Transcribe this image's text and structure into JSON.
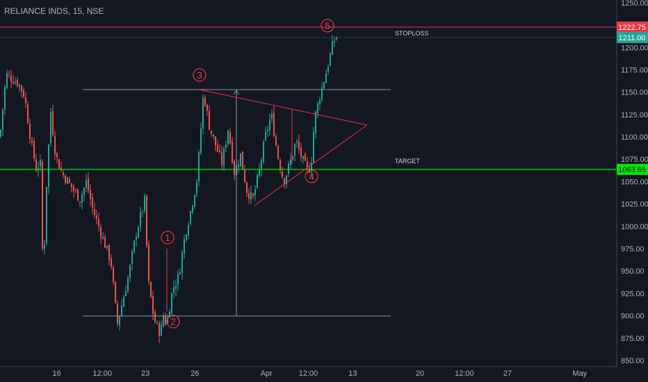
{
  "title": "RELIANCE INDS, 15, NSE",
  "chart_data": {
    "type": "candlestick",
    "symbol": "RELIANCE INDS",
    "interval": "15",
    "exchange": "NSE",
    "y_ticks": [
      "1250.00",
      "1225.00",
      "1200.00",
      "1175.00",
      "1150.00",
      "1125.00",
      "1100.00",
      "1075.00",
      "1050.00",
      "1025.00",
      "1000.00",
      "975.00",
      "950.00",
      "925.00",
      "900.00",
      "875.00",
      "850.00"
    ],
    "y_tick_values": [
      1250,
      1225,
      1200,
      1175,
      1150,
      1125,
      1100,
      1075,
      1050,
      1025,
      1000,
      975,
      950,
      925,
      900,
      875,
      850
    ],
    "ylim": [
      843,
      1253
    ],
    "x_ticks": [
      {
        "label": "16",
        "pos": 0.092
      },
      {
        "label": "12:00",
        "pos": 0.166
      },
      {
        "label": "23",
        "pos": 0.236
      },
      {
        "label": "26",
        "pos": 0.316
      },
      {
        "label": "Apr",
        "pos": 0.432
      },
      {
        "label": "12:00",
        "pos": 0.5
      },
      {
        "label": "13",
        "pos": 0.572
      },
      {
        "label": "20",
        "pos": 0.681
      },
      {
        "label": "12:00",
        "pos": 0.753
      },
      {
        "label": "27",
        "pos": 0.823
      },
      {
        "label": "May",
        "pos": 0.94
      }
    ],
    "levels": {
      "stoploss": {
        "label": "STOPLOSS",
        "value": 1222.75,
        "price_text": "1222.75",
        "color": "#f23645"
      },
      "last": {
        "value": 1211.0,
        "price_text": "1211.00",
        "color": "#26a69a"
      },
      "target": {
        "label": "TARGET",
        "value": 1063.65,
        "price_text": "1063.65",
        "color": "#00e600"
      }
    },
    "waves": [
      "1",
      "2",
      "3",
      "4",
      "5"
    ],
    "colors": {
      "up": "#26a69a",
      "down": "#ef5350",
      "drawing": "#f23645",
      "range": "#9598a1"
    },
    "path": [
      [
        0,
        1100
      ],
      [
        0.01,
        1170
      ],
      [
        0.03,
        1160
      ],
      [
        0.04,
        1145
      ],
      [
        0.05,
        1095
      ],
      [
        0.06,
        1060
      ],
      [
        0.065,
        1080
      ],
      [
        0.07,
        940
      ],
      [
        0.075,
        1040
      ],
      [
        0.082,
        1130
      ],
      [
        0.09,
        1080
      ],
      [
        0.1,
        1060
      ],
      [
        0.11,
        1050
      ],
      [
        0.12,
        1040
      ],
      [
        0.13,
        1030
      ],
      [
        0.14,
        1050
      ],
      [
        0.15,
        1020
      ],
      [
        0.16,
        1000
      ],
      [
        0.17,
        980
      ],
      [
        0.18,
        960
      ],
      [
        0.19,
        890
      ],
      [
        0.2,
        920
      ],
      [
        0.21,
        950
      ],
      [
        0.22,
        990
      ],
      [
        0.235,
        1030
      ],
      [
        0.24,
        940
      ],
      [
        0.25,
        895
      ],
      [
        0.26,
        880
      ],
      [
        0.265,
        900
      ],
      [
        0.27,
        890
      ],
      [
        0.28,
        930
      ],
      [
        0.29,
        945
      ],
      [
        0.3,
        990
      ],
      [
        0.31,
        1020
      ],
      [
        0.32,
        1055
      ],
      [
        0.33,
        1150
      ],
      [
        0.34,
        1110
      ],
      [
        0.35,
        1090
      ],
      [
        0.36,
        1070
      ],
      [
        0.37,
        1110
      ],
      [
        0.38,
        1060
      ],
      [
        0.39,
        1080
      ],
      [
        0.4,
        1040
      ],
      [
        0.41,
        1030
      ],
      [
        0.42,
        1060
      ],
      [
        0.43,
        1100
      ],
      [
        0.44,
        1125
      ],
      [
        0.45,
        1080
      ],
      [
        0.46,
        1050
      ],
      [
        0.47,
        1070
      ],
      [
        0.48,
        1095
      ],
      [
        0.49,
        1075
      ],
      [
        0.5,
        1060
      ],
      [
        0.505,
        1075
      ],
      [
        0.51,
        1120
      ],
      [
        0.52,
        1150
      ],
      [
        0.53,
        1175
      ],
      [
        0.54,
        1205
      ],
      [
        0.545,
        1212
      ]
    ]
  }
}
